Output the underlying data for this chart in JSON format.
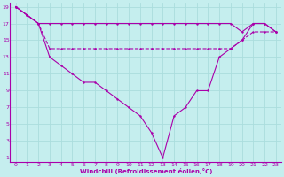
{
  "xlabel": "Windchill (Refroidissement éolien,°C)",
  "bg_color": "#c5eeee",
  "line_color": "#aa00aa",
  "grid_color": "#aadddd",
  "xlim": [
    -0.5,
    23.5
  ],
  "ylim": [
    0.5,
    19.5
  ],
  "xticks": [
    0,
    1,
    2,
    3,
    4,
    5,
    6,
    7,
    8,
    9,
    10,
    11,
    12,
    13,
    14,
    15,
    16,
    17,
    18,
    19,
    20,
    21,
    22,
    23
  ],
  "yticks": [
    1,
    3,
    5,
    7,
    9,
    11,
    13,
    15,
    17,
    19
  ],
  "line_top_y": [
    19,
    18,
    17,
    17,
    17,
    17,
    17,
    17,
    17,
    17,
    17,
    17,
    17,
    17,
    17,
    17,
    17,
    17,
    17,
    17,
    16,
    17,
    17,
    16
  ],
  "line_mid_y": [
    19,
    18,
    17,
    14,
    14,
    14,
    14,
    14,
    14,
    14,
    14,
    14,
    14,
    14,
    14,
    14,
    14,
    14,
    14,
    14,
    15,
    16,
    16,
    16
  ],
  "line_bot_y": [
    19,
    18,
    17,
    13,
    12,
    11,
    10,
    10,
    9,
    8,
    7,
    6,
    4,
    1,
    6,
    7,
    9,
    9,
    13,
    14,
    15,
    17,
    17,
    16
  ]
}
